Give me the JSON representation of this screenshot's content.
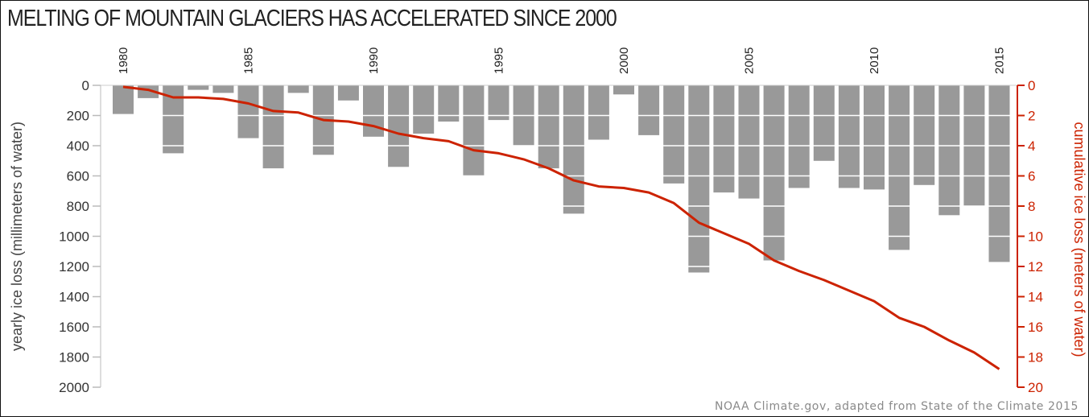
{
  "title": "MELTING OF MOUNTAIN GLACIERS HAS ACCELERATED SINCE 2000",
  "source": "NOAA Climate.gov, adapted from State of the Climate 2015",
  "chart_data": {
    "type": "bar",
    "x": [
      1980,
      1981,
      1982,
      1983,
      1984,
      1985,
      1986,
      1987,
      1988,
      1989,
      1990,
      1991,
      1992,
      1993,
      1994,
      1995,
      1996,
      1997,
      1998,
      1999,
      2000,
      2001,
      2002,
      2003,
      2004,
      2005,
      2006,
      2007,
      2008,
      2009,
      2010,
      2011,
      2012,
      2013,
      2014,
      2015
    ],
    "x_tick_labels": [
      "1980",
      "1985",
      "1990",
      "1995",
      "2000",
      "2005",
      "2010",
      "2015"
    ],
    "series": [
      {
        "axis": "left",
        "type": "bar",
        "values": [
          190,
          85,
          450,
          30,
          50,
          350,
          550,
          50,
          460,
          100,
          340,
          540,
          320,
          240,
          600,
          230,
          400,
          550,
          850,
          360,
          60,
          330,
          650,
          1240,
          710,
          750,
          1160,
          680,
          500,
          680,
          690,
          1090,
          660,
          860,
          800,
          1170
        ]
      },
      {
        "axis": "right",
        "type": "line",
        "values": [
          0.1,
          0.3,
          0.8,
          0.8,
          0.9,
          1.2,
          1.7,
          1.8,
          2.3,
          2.4,
          2.7,
          3.2,
          3.5,
          3.7,
          4.3,
          4.5,
          4.9,
          5.5,
          6.3,
          6.7,
          6.8,
          7.1,
          7.8,
          9.1,
          9.8,
          10.5,
          11.6,
          12.3,
          12.9,
          13.6,
          14.3,
          15.4,
          16.0,
          16.9,
          17.7,
          18.8
        ]
      }
    ],
    "ylabel": "yearly ice loss (millimeters of water)",
    "ylabel_right": "cumulative ice loss (meters of water)",
    "ylim": [
      0,
      2000
    ],
    "yticks": [
      0,
      200,
      400,
      600,
      800,
      1000,
      1200,
      1400,
      1600,
      1800,
      2000
    ],
    "ylim_right": [
      0,
      20
    ],
    "yticks_right": [
      0,
      2,
      4,
      6,
      8,
      10,
      12,
      14,
      16,
      18,
      20
    ],
    "grid": "horizontal gridlines at 200 mm steps, drawn over bars",
    "colors": {
      "bars": "#999999",
      "line": "#cc2200",
      "right_axis": "#cc2200",
      "left_axis": "#333333",
      "gridlines": "#ffffff"
    }
  }
}
